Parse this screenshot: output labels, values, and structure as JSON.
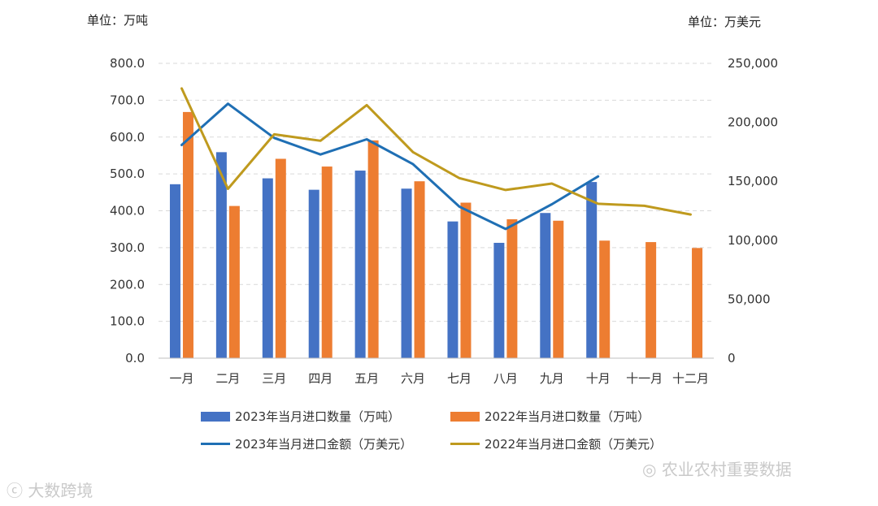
{
  "units": {
    "left": "单位：万吨",
    "right": "单位：万美元"
  },
  "watermarks": {
    "left": "大数跨境",
    "right": "农业农村重要数据"
  },
  "colors": {
    "bar2023": "#4472c4",
    "bar2022": "#ed7d31",
    "line2023": "#1f6fb4",
    "line2022": "#bf9a1e"
  },
  "chart_data": {
    "type": "bar",
    "categories": [
      "一月",
      "二月",
      "三月",
      "四月",
      "五月",
      "六月",
      "七月",
      "八月",
      "九月",
      "十月",
      "十一月",
      "十二月"
    ],
    "y_left": {
      "ticks": [
        "0.0",
        "100.0",
        "200.0",
        "300.0",
        "400.0",
        "500.0",
        "600.0",
        "700.0",
        "800.0"
      ],
      "range": [
        0,
        800
      ]
    },
    "y_right": {
      "ticks": [
        "0",
        "50,000",
        "100,000",
        "150,000",
        "200,000",
        "250,000"
      ],
      "range": [
        0,
        250000
      ]
    },
    "grid": true,
    "legend_position": "bottom",
    "series": [
      {
        "name": "2023年当月进口数量（万吨）",
        "type": "bar",
        "axis": "left",
        "values": [
          472,
          559,
          488,
          457,
          509,
          460,
          371,
          313,
          394,
          478,
          null,
          null
        ]
      },
      {
        "name": "2022年当月进口数量（万吨）",
        "type": "bar",
        "axis": "left",
        "values": [
          668,
          413,
          541,
          520,
          591,
          480,
          422,
          377,
          373,
          319,
          315,
          299
        ]
      },
      {
        "name": "2023年当月进口金额（万美元）",
        "type": "line",
        "axis": "right",
        "values": [
          180800,
          215800,
          186800,
          172700,
          185600,
          164500,
          128500,
          109600,
          130500,
          154100,
          null,
          null
        ]
      },
      {
        "name": "2022年当月进口金额（万美元）",
        "type": "line",
        "axis": "right",
        "values": [
          228700,
          143600,
          189800,
          184400,
          214600,
          174700,
          152700,
          142600,
          148100,
          130900,
          129200,
          121800
        ]
      }
    ]
  }
}
